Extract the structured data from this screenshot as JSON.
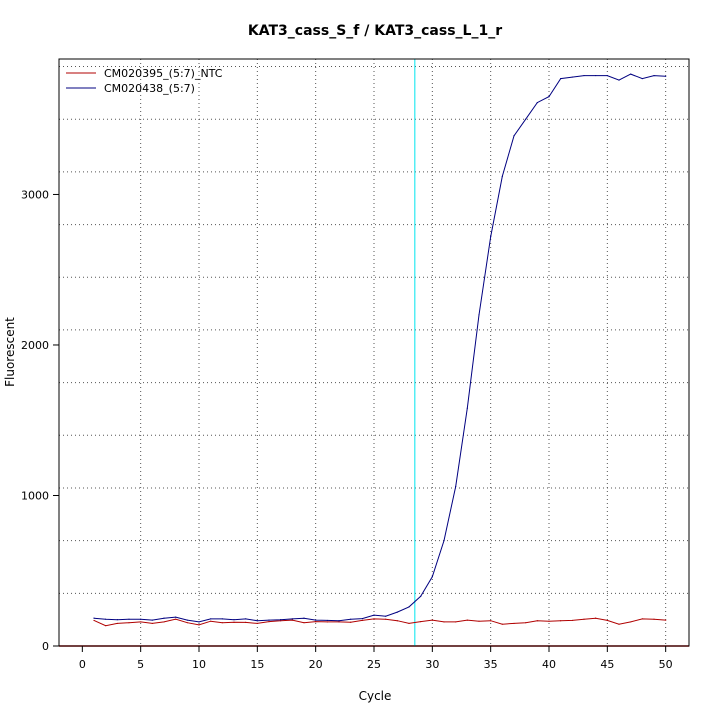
{
  "chart_data": {
    "type": "line",
    "title": "KAT3_cass_S_f / KAT3_cass_L_1_r",
    "xlabel": "Cycle",
    "ylabel": "Fluorescent",
    "xlim": [
      -2,
      52
    ],
    "ylim": [
      0,
      3900
    ],
    "x_ticks": [
      0,
      5,
      10,
      15,
      20,
      25,
      30,
      35,
      40,
      45,
      50
    ],
    "y_ticks": [
      0,
      1000,
      2000,
      3000
    ],
    "x_grid": [
      5,
      10,
      15,
      20,
      25,
      30,
      35,
      40,
      45,
      50
    ],
    "y_grid": [
      350,
      700,
      1050,
      1400,
      1750,
      2100,
      2450,
      2800,
      3150,
      3500,
      3850
    ],
    "threshold_x": 28.5,
    "legend_position": "top-left",
    "x": [
      1,
      2,
      3,
      4,
      5,
      6,
      7,
      8,
      9,
      10,
      11,
      12,
      13,
      14,
      15,
      16,
      17,
      18,
      19,
      20,
      21,
      22,
      23,
      24,
      25,
      26,
      27,
      28,
      29,
      30,
      31,
      32,
      33,
      34,
      35,
      36,
      37,
      38,
      39,
      40,
      41,
      42,
      43,
      44,
      45,
      46,
      47,
      48,
      49,
      50
    ],
    "series": [
      {
        "name": "CM020395_(5:7)_NTC",
        "color": "#b00000",
        "values": [
          170,
          135,
          150,
          155,
          160,
          150,
          160,
          178,
          155,
          140,
          165,
          155,
          158,
          157,
          150,
          162,
          168,
          172,
          155,
          162,
          160,
          160,
          158,
          170,
          180,
          178,
          168,
          150,
          162,
          172,
          160,
          160,
          172,
          165,
          168,
          145,
          150,
          155,
          168,
          165,
          168,
          170,
          178,
          185,
          170,
          145,
          160,
          180,
          178,
          172
        ]
      },
      {
        "name": "CM020438_(5:7)",
        "color": "#000080",
        "values": [
          185,
          178,
          175,
          178,
          178,
          172,
          185,
          192,
          172,
          160,
          180,
          180,
          175,
          180,
          168,
          172,
          175,
          180,
          185,
          172,
          170,
          168,
          178,
          182,
          205,
          198,
          225,
          260,
          330,
          460,
          700,
          1060,
          1580,
          2200,
          2720,
          3120,
          3390,
          3500,
          3610,
          3650,
          3770,
          3780,
          3790,
          3790,
          3790,
          3760,
          3800,
          3770,
          3790,
          3785
        ]
      }
    ]
  }
}
